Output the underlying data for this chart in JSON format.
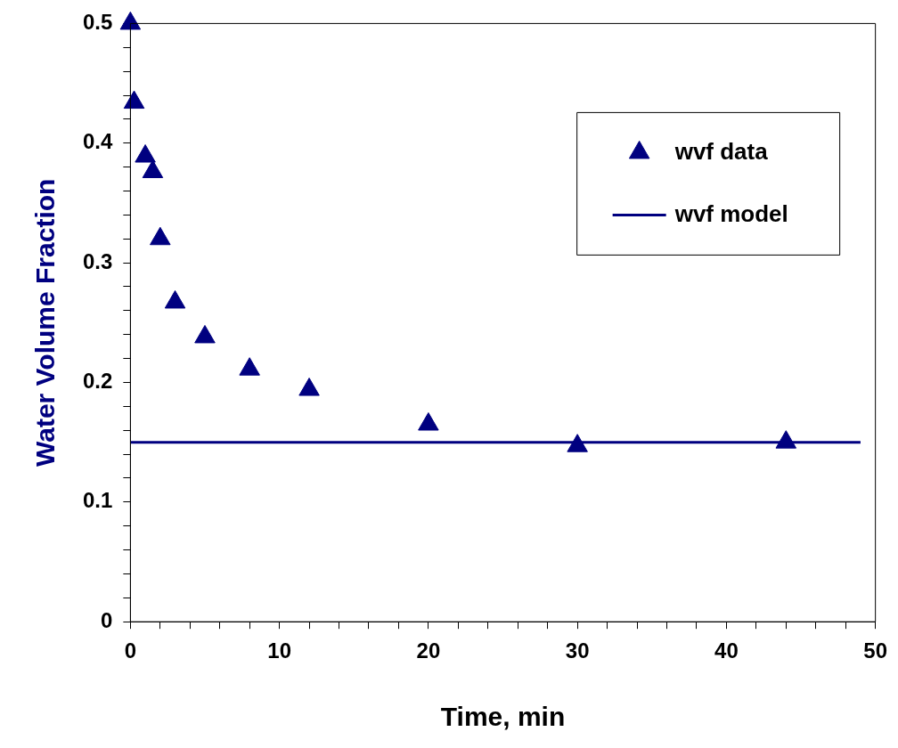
{
  "chart_data": {
    "type": "scatter",
    "xlabel": "Time, min",
    "ylabel": "Water Volume Fraction",
    "xlim": [
      0,
      50
    ],
    "ylim": [
      0,
      0.5
    ],
    "xticks": [
      0,
      {
        "value": 2,
        "label": null
      },
      {
        "value": 4,
        "label": null
      },
      {
        "value": 6,
        "label": null
      },
      {
        "value": 8,
        "label": null
      },
      10,
      {
        "value": 12,
        "label": null
      },
      {
        "value": 14,
        "label": null
      },
      {
        "value": 16,
        "label": null
      },
      {
        "value": 18,
        "label": null
      },
      20,
      {
        "value": 22,
        "label": null
      },
      {
        "value": 24,
        "label": null
      },
      {
        "value": 26,
        "label": null
      },
      {
        "value": 28,
        "label": null
      },
      30,
      {
        "value": 32,
        "label": null
      },
      {
        "value": 34,
        "label": null
      },
      {
        "value": 36,
        "label": null
      },
      {
        "value": 38,
        "label": null
      },
      40,
      {
        "value": 42,
        "label": null
      },
      {
        "value": 44,
        "label": null
      },
      {
        "value": 46,
        "label": null
      },
      {
        "value": 48,
        "label": null
      },
      50
    ],
    "yticks": [
      0,
      {
        "value": 0.02,
        "label": null
      },
      {
        "value": 0.04,
        "label": null
      },
      {
        "value": 0.06,
        "label": null
      },
      {
        "value": 0.08,
        "label": null
      },
      0.1,
      {
        "value": 0.12,
        "label": null
      },
      {
        "value": 0.14,
        "label": null
      },
      {
        "value": 0.16,
        "label": null
      },
      {
        "value": 0.18,
        "label": null
      },
      0.2,
      {
        "value": 0.22,
        "label": null
      },
      {
        "value": 0.24,
        "label": null
      },
      {
        "value": 0.26,
        "label": null
      },
      {
        "value": 0.28,
        "label": null
      },
      0.3,
      {
        "value": 0.32,
        "label": null
      },
      {
        "value": 0.34,
        "label": null
      },
      {
        "value": 0.36,
        "label": null
      },
      {
        "value": 0.38,
        "label": null
      },
      0.4,
      {
        "value": 0.42,
        "label": null
      },
      {
        "value": 0.44,
        "label": null
      },
      {
        "value": 0.46,
        "label": null
      },
      {
        "value": 0.48,
        "label": null
      },
      0.5
    ],
    "grid": false,
    "legend": "top right",
    "series": [
      {
        "name": "wvf data",
        "marker": "triangle",
        "color": "#000080",
        "x": [
          0,
          0.25,
          1,
          1.5,
          2,
          3,
          5,
          8,
          12,
          20,
          30,
          44
        ],
        "values": [
          0.5,
          0.434,
          0.389,
          0.376,
          0.32,
          0.267,
          0.238,
          0.211,
          0.194,
          0.165,
          0.147,
          0.15
        ]
      },
      {
        "name": "wvf model",
        "type": "line",
        "marker": "none",
        "line_style": "solid",
        "color": "#000080",
        "x": [
          0,
          49
        ],
        "values": [
          0.15,
          0.15
        ]
      }
    ]
  }
}
